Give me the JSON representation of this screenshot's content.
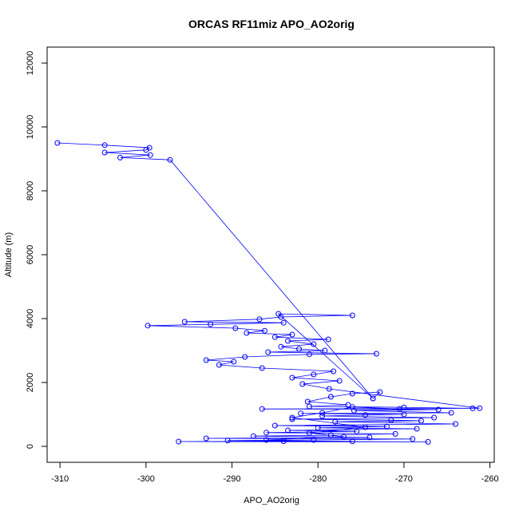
{
  "chart_data": {
    "type": "scatter",
    "title": "ORCAS RF11miz APO_AO2orig",
    "xlabel": "APO_AO2orig",
    "ylabel": "Altitude (m)",
    "xlim": [
      -311.5,
      -259.5
    ],
    "ylim": [
      -500,
      12500
    ],
    "xticks": [
      -310,
      -300,
      -290,
      -280,
      -270,
      -260
    ],
    "yticks": [
      0,
      2000,
      4000,
      6000,
      8000,
      10000,
      12000
    ],
    "grid": false,
    "legend": "none",
    "series": [
      {
        "color": "#0000ff",
        "marker": "open-circle",
        "connect_points": true,
        "points": [
          [
            -310.3,
            9500
          ],
          [
            -304.8,
            9430
          ],
          [
            -299.6,
            9350
          ],
          [
            -300.0,
            9280
          ],
          [
            -304.8,
            9200
          ],
          [
            -299.5,
            9120
          ],
          [
            -303.0,
            9040
          ],
          [
            -297.2,
            8970
          ],
          [
            -273.6,
            1500
          ],
          [
            -272.8,
            1700
          ],
          [
            -276.0,
            1650
          ],
          [
            -278.5,
            1550
          ],
          [
            -281.2,
            1400
          ],
          [
            -276.5,
            1300
          ],
          [
            -281.0,
            1250
          ],
          [
            -270.0,
            1220
          ],
          [
            -262.0,
            1190
          ],
          [
            -286.5,
            1170
          ],
          [
            -266.0,
            1150
          ],
          [
            -275.8,
            1120
          ],
          [
            -264.5,
            1050
          ],
          [
            -282.0,
            1030
          ],
          [
            -270.0,
            1000
          ],
          [
            -274.5,
            980
          ],
          [
            -279.5,
            950
          ],
          [
            -266.5,
            900
          ],
          [
            -283.0,
            850
          ],
          [
            -271.5,
            820
          ],
          [
            -268.0,
            800
          ],
          [
            -278.0,
            770
          ],
          [
            -264.0,
            700
          ],
          [
            -285.0,
            650
          ],
          [
            -272.0,
            620
          ],
          [
            -280.0,
            580
          ],
          [
            -268.5,
            550
          ],
          [
            -283.5,
            500
          ],
          [
            -275.5,
            470
          ],
          [
            -286.0,
            430
          ],
          [
            -271.0,
            390
          ],
          [
            -278.5,
            350
          ],
          [
            -287.5,
            320
          ],
          [
            -274.0,
            280
          ],
          [
            -293.0,
            250
          ],
          [
            -269.0,
            230
          ],
          [
            -280.5,
            200
          ],
          [
            -290.5,
            180
          ],
          [
            -276.0,
            160
          ],
          [
            -296.2,
            150
          ],
          [
            -267.2,
            140
          ],
          [
            -284.0,
            160
          ],
          [
            -286.0,
            200
          ],
          [
            -277.0,
            300
          ],
          [
            -281.0,
            420
          ],
          [
            -274.5,
            600
          ],
          [
            -283.0,
            900
          ],
          [
            -279.5,
            1050
          ],
          [
            -276.0,
            1230
          ],
          [
            -270.5,
            1170
          ],
          [
            -261.2,
            1195
          ],
          [
            -278.7,
            1800
          ],
          [
            -281.8,
            1950
          ],
          [
            -277.5,
            2050
          ],
          [
            -283.0,
            2150
          ],
          [
            -280.5,
            2250
          ],
          [
            -278.2,
            2350
          ],
          [
            -286.5,
            2450
          ],
          [
            -291.5,
            2550
          ],
          [
            -289.8,
            2650
          ],
          [
            -293.0,
            2700
          ],
          [
            -288.5,
            2800
          ],
          [
            -281.0,
            2880
          ],
          [
            -273.2,
            2900
          ],
          [
            -285.8,
            2950
          ],
          [
            -279.2,
            3000
          ],
          [
            -282.2,
            3050
          ],
          [
            -284.3,
            3120
          ],
          [
            -280.5,
            3200
          ],
          [
            -283.5,
            3300
          ],
          [
            -278.8,
            3350
          ],
          [
            -285.0,
            3420
          ],
          [
            -283.0,
            3500
          ],
          [
            -288.3,
            3550
          ],
          [
            -286.2,
            3620
          ],
          [
            -289.6,
            3700
          ],
          [
            -299.8,
            3780
          ],
          [
            -292.5,
            3820
          ],
          [
            -284.0,
            3870
          ],
          [
            -295.5,
            3900
          ],
          [
            -286.8,
            3980
          ],
          [
            -284.3,
            4050
          ],
          [
            -276.0,
            4100
          ],
          [
            -284.6,
            4150
          ],
          [
            -273.6,
            1500
          ]
        ]
      }
    ]
  }
}
